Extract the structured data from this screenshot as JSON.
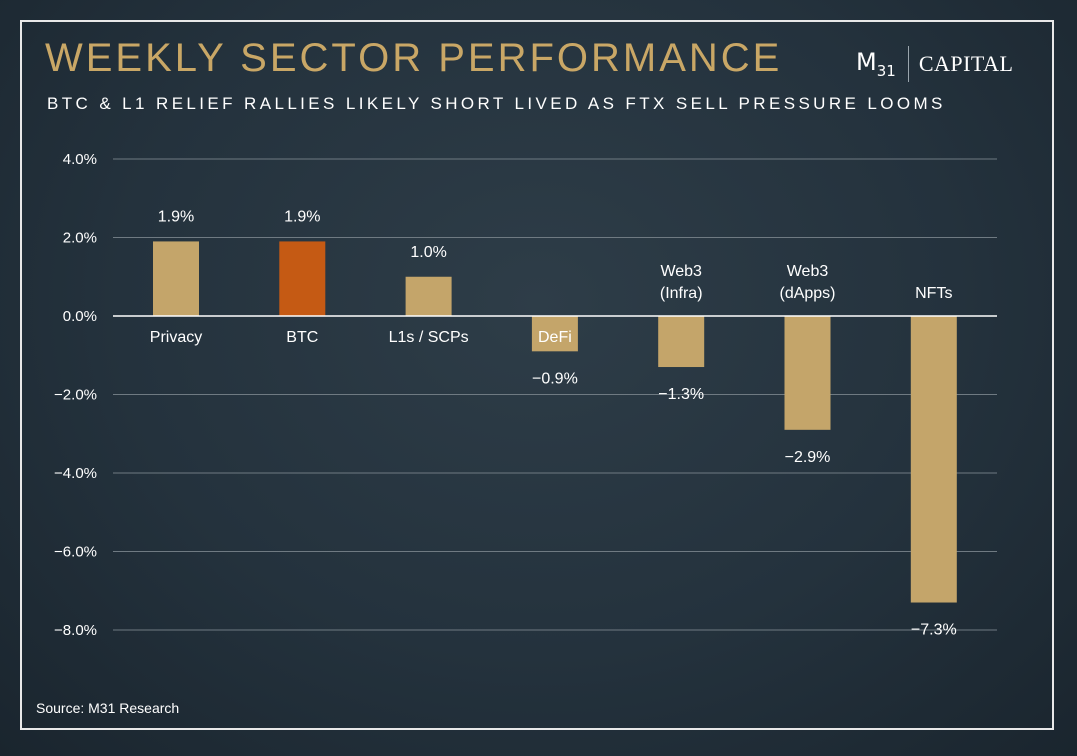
{
  "header": {
    "title": "WEEKLY SECTOR PERFORMANCE",
    "subtitle": "BTC & L1 RELIEF RALLIES LIKELY SHORT LIVED AS FTX SELL PRESSURE LOOMS",
    "logo_m": "M",
    "logo_num": "31",
    "logo_capital": "CAPITAL"
  },
  "footer": {
    "source": "Source: M31 Research"
  },
  "colors": {
    "bar": "#c4a56a",
    "highlight": "#c55a14",
    "gridline": "#6f7a82",
    "zero_line": "#ffffff"
  },
  "chart_data": {
    "type": "bar",
    "categories": [
      [
        "Privacy"
      ],
      [
        "BTC"
      ],
      [
        "L1s / SCPs"
      ],
      [
        "DeFi"
      ],
      [
        "Web3",
        "(Infra)"
      ],
      [
        "Web3",
        "(dApps)"
      ],
      [
        "NFTs"
      ]
    ],
    "values": [
      1.9,
      1.9,
      1.0,
      -0.9,
      -1.3,
      -2.9,
      -7.3
    ],
    "value_labels": [
      "1.9%",
      "1.9%",
      "1.0%",
      "-0.9%",
      "-1.3%",
      "-2.9%",
      "-7.3%"
    ],
    "highlight_category": "BTC",
    "ylim": [
      -8,
      4
    ],
    "yticks": [
      4,
      2,
      0,
      -2,
      -4,
      -6,
      -8
    ],
    "ytick_labels": [
      "4.0%",
      "2.0%",
      "0.0%",
      "-2.0%",
      "-4.0%",
      "-6.0%",
      "-8.0%"
    ],
    "grid": true,
    "legend": "none"
  }
}
